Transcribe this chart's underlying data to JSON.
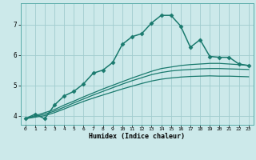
{
  "xlabel": "Humidex (Indice chaleur)",
  "xlim": [
    -0.5,
    23.5
  ],
  "ylim": [
    3.7,
    7.7
  ],
  "yticks": [
    4,
    5,
    6,
    7
  ],
  "xticks": [
    0,
    1,
    2,
    3,
    4,
    5,
    6,
    7,
    8,
    9,
    10,
    11,
    12,
    13,
    14,
    15,
    16,
    17,
    18,
    19,
    20,
    21,
    22,
    23
  ],
  "bg_color": "#cce9ea",
  "grid_color": "#a0ccce",
  "line_color": "#1a7a6e",
  "lines": [
    {
      "x": [
        0,
        1,
        2,
        3,
        4,
        5,
        6,
        7,
        8,
        9,
        10,
        11,
        12,
        13,
        14,
        15,
        16,
        17,
        18,
        19,
        20,
        21,
        22,
        23
      ],
      "y": [
        3.9,
        4.05,
        3.9,
        4.35,
        4.65,
        4.8,
        5.05,
        5.4,
        5.5,
        5.75,
        6.35,
        6.6,
        6.7,
        7.05,
        7.3,
        7.3,
        6.95,
        6.25,
        6.5,
        5.95,
        5.92,
        5.92,
        5.7,
        5.65
      ],
      "marker": "D",
      "markersize": 2.5,
      "linewidth": 1.1,
      "zorder": 4
    },
    {
      "x": [
        0,
        1,
        2,
        3,
        4,
        5,
        6,
        7,
        8,
        9,
        10,
        11,
        12,
        13,
        14,
        15,
        16,
        17,
        18,
        19,
        20,
        21,
        22,
        23
      ],
      "y": [
        3.9,
        4.0,
        4.1,
        4.2,
        4.35,
        4.48,
        4.62,
        4.75,
        4.88,
        5.0,
        5.12,
        5.24,
        5.35,
        5.46,
        5.55,
        5.6,
        5.65,
        5.68,
        5.7,
        5.72,
        5.72,
        5.7,
        5.68,
        5.65
      ],
      "marker": null,
      "markersize": 0,
      "linewidth": 0.9,
      "zorder": 2
    },
    {
      "x": [
        0,
        1,
        2,
        3,
        4,
        5,
        6,
        7,
        8,
        9,
        10,
        11,
        12,
        13,
        14,
        15,
        16,
        17,
        18,
        19,
        20,
        21,
        22,
        23
      ],
      "y": [
        3.9,
        3.97,
        4.05,
        4.15,
        4.28,
        4.42,
        4.55,
        4.68,
        4.8,
        4.92,
        5.04,
        5.15,
        5.25,
        5.35,
        5.42,
        5.47,
        5.5,
        5.52,
        5.54,
        5.55,
        5.55,
        5.54,
        5.53,
        5.52
      ],
      "marker": null,
      "markersize": 0,
      "linewidth": 0.9,
      "zorder": 2
    },
    {
      "x": [
        0,
        1,
        2,
        3,
        4,
        5,
        6,
        7,
        8,
        9,
        10,
        11,
        12,
        13,
        14,
        15,
        16,
        17,
        18,
        19,
        20,
        21,
        22,
        23
      ],
      "y": [
        3.9,
        3.95,
        4.0,
        4.1,
        4.22,
        4.35,
        4.47,
        4.58,
        4.68,
        4.78,
        4.88,
        4.97,
        5.06,
        5.14,
        5.2,
        5.24,
        5.27,
        5.29,
        5.3,
        5.31,
        5.3,
        5.3,
        5.29,
        5.28
      ],
      "marker": null,
      "markersize": 0,
      "linewidth": 0.9,
      "zorder": 2
    }
  ]
}
